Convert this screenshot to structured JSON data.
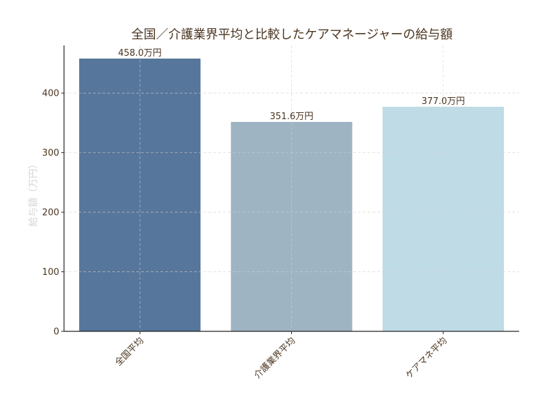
{
  "chart_data": {
    "type": "bar",
    "title": "全国／介護業界平均と比較したケアマネージャーの給与額",
    "xlabel": "",
    "ylabel": "給与額（万円）",
    "categories": [
      "全国平均",
      "介護業界平均",
      "ケアマネ平均"
    ],
    "values": [
      458.0,
      351.6,
      377.0
    ],
    "value_labels": [
      "458.0万円",
      "351.6万円",
      "377.0万円"
    ],
    "bar_colors": [
      "#57769b",
      "#9eb4c3",
      "#bfdbe5"
    ],
    "ylim": [
      0,
      480
    ],
    "yticks": [
      0,
      100,
      200,
      300,
      400
    ],
    "grid": true,
    "legend": "none",
    "colors": {
      "title": "#4a3520",
      "tick_text": "#4a3520",
      "ylabel": "#d6d6d6",
      "axis": "#222222",
      "grid": "#d0d0d0"
    }
  }
}
